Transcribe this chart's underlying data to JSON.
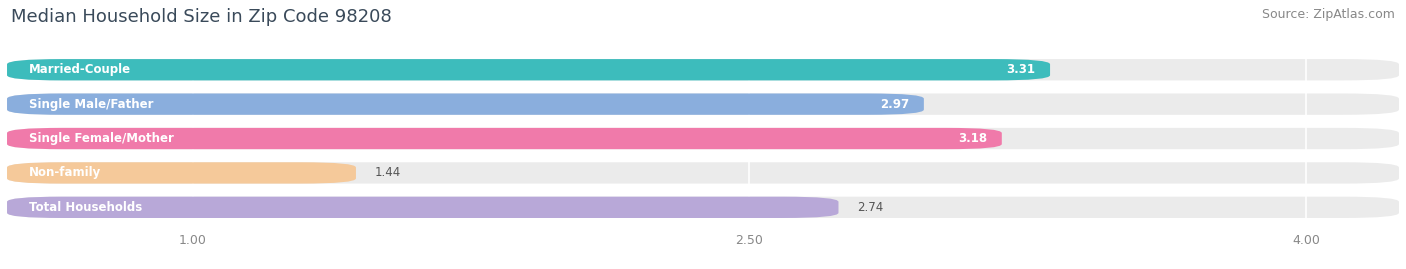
{
  "title": "Median Household Size in Zip Code 98208",
  "source": "Source: ZipAtlas.com",
  "categories": [
    "Married-Couple",
    "Single Male/Father",
    "Single Female/Mother",
    "Non-family",
    "Total Households"
  ],
  "values": [
    3.31,
    2.97,
    3.18,
    1.44,
    2.74
  ],
  "bar_colors": [
    "#3dbcbc",
    "#8aaedd",
    "#f07aaa",
    "#f5c99a",
    "#b8a8d8"
  ],
  "value_text_colors": [
    "white",
    "white",
    "white",
    "#555555",
    "#555555"
  ],
  "background_color": "#ffffff",
  "bar_bg_color": "#ebebeb",
  "xmin": 0.5,
  "xmax": 4.25,
  "xlim_display": [
    1.0,
    2.5,
    4.0
  ],
  "title_fontsize": 13,
  "source_fontsize": 9,
  "label_fontsize": 8.5,
  "value_fontsize": 8.5,
  "bar_height": 0.62
}
